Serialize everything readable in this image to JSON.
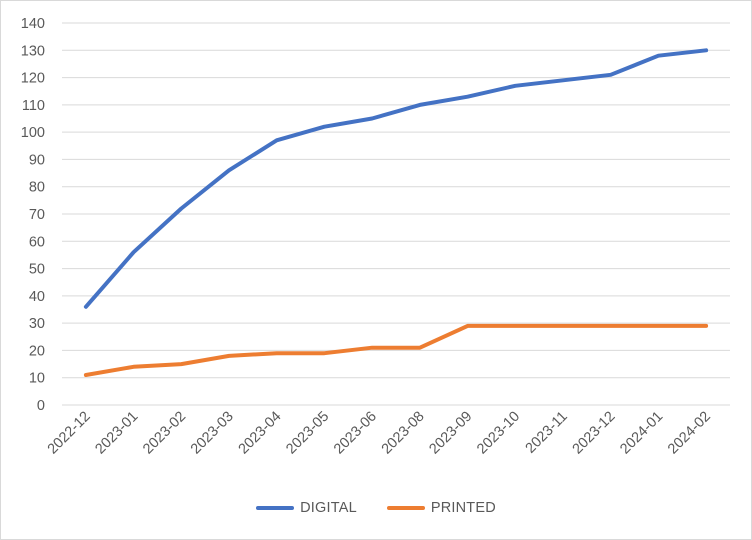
{
  "chart_data": {
    "type": "line",
    "title": "",
    "xlabel": "",
    "ylabel": "",
    "categories": [
      "2022-12",
      "2023-01",
      "2023-02",
      "2023-03",
      "2023-04",
      "2023-05",
      "2023-06",
      "2023-08",
      "2023-09",
      "2023-10",
      "2023-11",
      "2023-12",
      "2024-01",
      "2024-02"
    ],
    "ylim": [
      0,
      140
    ],
    "yticks": [
      "0",
      "10",
      "20",
      "30",
      "40",
      "50",
      "60",
      "70",
      "80",
      "90",
      "100",
      "110",
      "120",
      "130",
      "140"
    ],
    "grid": "horizontal",
    "legend_position": "bottom",
    "series": [
      {
        "name": "DIGITAL",
        "color": "#4472C4",
        "values": [
          36,
          56,
          72,
          86,
          97,
          102,
          105,
          110,
          113,
          117,
          119,
          121,
          128,
          130
        ]
      },
      {
        "name": "PRINTED",
        "color": "#ED7D31",
        "values": [
          11,
          14,
          15,
          18,
          19,
          19,
          21,
          21,
          29,
          29,
          29,
          29,
          29,
          29
        ]
      }
    ]
  }
}
